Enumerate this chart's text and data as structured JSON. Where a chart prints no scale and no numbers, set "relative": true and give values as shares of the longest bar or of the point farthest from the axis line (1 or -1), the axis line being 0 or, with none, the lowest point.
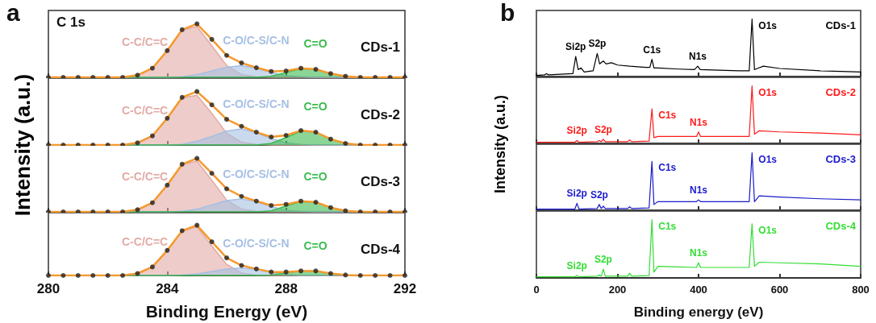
{
  "chart_data": [
    {
      "type": "area",
      "title": "a",
      "ylabel": "Intensity (a.u.)",
      "relative": true,
      "legend": false,
      "grid": false,
      "tick_labels": false,
      "xlim": [
        280,
        292
      ],
      "xticks": [
        280,
        284,
        288,
        292
      ],
      "annotations": [
        "C 1s",
        "CDs-1"
      ],
      "x": [
        280,
        280.5,
        281,
        281.5,
        282,
        282.5,
        283,
        283.5,
        284,
        284.5,
        285,
        285.5,
        286,
        286.5,
        287,
        287.5,
        288,
        288.5,
        289,
        289.5,
        290,
        290.5,
        291,
        291.5,
        292
      ],
      "series": [
        {
          "name": "C-C/C=C",
          "color": "#e3aaa5",
          "values": [
            0,
            0,
            0,
            0,
            0,
            0,
            0.04,
            0.17,
            0.5,
            0.88,
            0.95,
            0.59,
            0.22,
            0.05,
            0.01,
            0,
            0,
            0,
            0,
            0,
            0,
            0,
            0,
            0,
            0
          ]
        },
        {
          "name": "C-O/C-S/C-N",
          "color": "#a5bfe3",
          "values": [
            0,
            0,
            0,
            0,
            0,
            0,
            0,
            0,
            0,
            0.01,
            0.05,
            0.12,
            0.19,
            0.22,
            0.17,
            0.09,
            0.03,
            0.01,
            0,
            0,
            0,
            0,
            0,
            0,
            0
          ]
        },
        {
          "name": "C=O",
          "color": "#3dbb50",
          "values": [
            0,
            0,
            0,
            0,
            0,
            0,
            0,
            0,
            0,
            0,
            0,
            0,
            0,
            0,
            0,
            0.02,
            0.09,
            0.16,
            0.15,
            0.07,
            0.02,
            0,
            0,
            0,
            0
          ]
        },
        {
          "type": "line",
          "color": "#f5992e",
          "values": [
            0,
            0,
            0,
            0,
            0,
            0,
            0.04,
            0.17,
            0.5,
            0.89,
            1,
            0.71,
            0.41,
            0.27,
            0.18,
            0.11,
            0.12,
            0.17,
            0.15,
            0.07,
            0.02,
            0,
            0,
            0,
            0
          ]
        },
        {
          "type": "scatter",
          "marker": "circle",
          "color": "#222222",
          "values": [
            0,
            0,
            0,
            0,
            0,
            0,
            0.04,
            0.17,
            0.5,
            0.89,
            1,
            0.71,
            0.41,
            0.27,
            0.18,
            0.11,
            0.12,
            0.17,
            0.15,
            0.07,
            0.02,
            0,
            0,
            0,
            0
          ]
        }
      ]
    },
    {
      "type": "area",
      "relative": true,
      "legend": false,
      "grid": false,
      "tick_labels": false,
      "xlim": [
        280,
        292
      ],
      "xticks": [
        280,
        284,
        288,
        292
      ],
      "annotations": [
        "CDs-2"
      ],
      "x": [
        280,
        280.5,
        281,
        281.5,
        282,
        282.5,
        283,
        283.5,
        284,
        284.5,
        285,
        285.5,
        286,
        286.5,
        287,
        287.5,
        288,
        288.5,
        289,
        289.5,
        290,
        290.5,
        291,
        291.5,
        292
      ],
      "series": [
        {
          "name": "C-C/C=C",
          "color": "#e3aaa5",
          "values": [
            0,
            0,
            0,
            0,
            0,
            0,
            0.04,
            0.17,
            0.5,
            0.88,
            0.93,
            0.59,
            0.22,
            0.05,
            0.01,
            0,
            0,
            0,
            0,
            0,
            0,
            0,
            0,
            0,
            0
          ]
        },
        {
          "name": "C-O/C-S/C-N",
          "color": "#a5bfe3",
          "values": [
            0,
            0,
            0,
            0,
            0,
            0,
            0,
            0,
            0,
            0.01,
            0.07,
            0.16,
            0.26,
            0.3,
            0.23,
            0.12,
            0.04,
            0.01,
            0,
            0,
            0,
            0,
            0,
            0,
            0
          ]
        },
        {
          "name": "C=O",
          "color": "#3dbb50",
          "values": [
            0,
            0,
            0,
            0,
            0,
            0,
            0,
            0,
            0,
            0,
            0,
            0,
            0,
            0,
            0,
            0.03,
            0.14,
            0.26,
            0.24,
            0.11,
            0.03,
            0,
            0,
            0,
            0
          ]
        },
        {
          "type": "line",
          "color": "#f5992e",
          "values": [
            0,
            0,
            0,
            0,
            0,
            0,
            0.04,
            0.17,
            0.5,
            0.89,
            1,
            0.75,
            0.48,
            0.35,
            0.24,
            0.15,
            0.18,
            0.27,
            0.24,
            0.11,
            0.03,
            0,
            0,
            0,
            0
          ]
        },
        {
          "type": "scatter",
          "marker": "circle",
          "color": "#222222",
          "values": [
            0,
            0,
            0,
            0,
            0,
            0,
            0.04,
            0.17,
            0.5,
            0.89,
            1,
            0.75,
            0.48,
            0.35,
            0.24,
            0.15,
            0.18,
            0.27,
            0.24,
            0.11,
            0.03,
            0,
            0,
            0,
            0
          ]
        }
      ]
    },
    {
      "type": "area",
      "relative": true,
      "legend": false,
      "grid": false,
      "tick_labels": false,
      "xlim": [
        280,
        292
      ],
      "xticks": [
        280,
        284,
        288,
        292
      ],
      "annotations": [
        "CDs-3"
      ],
      "x": [
        280,
        280.5,
        281,
        281.5,
        282,
        282.5,
        283,
        283.5,
        284,
        284.5,
        285,
        285.5,
        286,
        286.5,
        287,
        287.5,
        288,
        288.5,
        289,
        289.5,
        290,
        290.5,
        291,
        291.5,
        292
      ],
      "series": [
        {
          "name": "C-C/C=C",
          "color": "#e3aaa5",
          "values": [
            0,
            0,
            0,
            0,
            0,
            0,
            0.04,
            0.17,
            0.5,
            0.88,
            0.95,
            0.59,
            0.22,
            0.05,
            0.01,
            0,
            0,
            0,
            0,
            0,
            0,
            0,
            0,
            0,
            0
          ]
        },
        {
          "name": "C-O/C-S/C-N",
          "color": "#a5bfe3",
          "values": [
            0,
            0,
            0,
            0,
            0,
            0,
            0,
            0,
            0,
            0.01,
            0.05,
            0.13,
            0.21,
            0.24,
            0.19,
            0.1,
            0.03,
            0.01,
            0,
            0,
            0,
            0,
            0,
            0,
            0
          ]
        },
        {
          "name": "C=O",
          "color": "#3dbb50",
          "values": [
            0,
            0,
            0,
            0,
            0,
            0,
            0,
            0,
            0,
            0,
            0,
            0,
            0,
            0,
            0,
            0.02,
            0.11,
            0.19,
            0.18,
            0.08,
            0.02,
            0,
            0,
            0,
            0
          ]
        },
        {
          "type": "line",
          "color": "#f5992e",
          "values": [
            0,
            0,
            0,
            0,
            0,
            0,
            0.04,
            0.17,
            0.5,
            0.89,
            1,
            0.72,
            0.43,
            0.29,
            0.2,
            0.12,
            0.14,
            0.2,
            0.18,
            0.08,
            0.02,
            0,
            0,
            0,
            0
          ]
        },
        {
          "type": "scatter",
          "marker": "circle",
          "color": "#222222",
          "values": [
            0,
            0,
            0,
            0,
            0,
            0,
            0.04,
            0.17,
            0.5,
            0.89,
            1,
            0.72,
            0.43,
            0.29,
            0.2,
            0.12,
            0.14,
            0.2,
            0.18,
            0.08,
            0.02,
            0,
            0,
            0,
            0
          ]
        }
      ]
    },
    {
      "type": "area",
      "xlabel": "Binding Energy (eV)",
      "relative": true,
      "legend": false,
      "grid": false,
      "tick_labels": "x",
      "xlim": [
        280,
        292
      ],
      "xticks": [
        280,
        284,
        288,
        292
      ],
      "annotations": [
        "CDs-4"
      ],
      "x": [
        280,
        280.5,
        281,
        281.5,
        282,
        282.5,
        283,
        283.5,
        284,
        284.5,
        285,
        285.5,
        286,
        286.5,
        287,
        287.5,
        288,
        288.5,
        289,
        289.5,
        290,
        290.5,
        291,
        291.5,
        292
      ],
      "series": [
        {
          "name": "C-C/C=C",
          "color": "#e3aaa5",
          "values": [
            0,
            0,
            0,
            0,
            0,
            0,
            0.04,
            0.17,
            0.5,
            0.88,
            0.97,
            0.59,
            0.22,
            0.05,
            0.01,
            0,
            0,
            0,
            0,
            0,
            0,
            0,
            0,
            0,
            0
          ]
        },
        {
          "name": "C-O/C-S/C-N",
          "color": "#a5bfe3",
          "values": [
            0,
            0,
            0,
            0,
            0,
            0,
            0,
            0,
            0,
            0.01,
            0.03,
            0.08,
            0.13,
            0.15,
            0.12,
            0.06,
            0.02,
            0,
            0,
            0,
            0,
            0,
            0,
            0,
            0
          ]
        },
        {
          "name": "C=O",
          "color": "#3dbb50",
          "values": [
            0,
            0,
            0,
            0,
            0,
            0,
            0,
            0,
            0,
            0,
            0,
            0,
            0,
            0,
            0,
            0.01,
            0.05,
            0.09,
            0.09,
            0.04,
            0.01,
            0,
            0,
            0,
            0
          ]
        },
        {
          "type": "line",
          "color": "#f5992e",
          "values": [
            0,
            0,
            0,
            0,
            0,
            0,
            0.04,
            0.17,
            0.5,
            0.89,
            1,
            0.67,
            0.35,
            0.2,
            0.13,
            0.07,
            0.07,
            0.09,
            0.09,
            0.04,
            0.01,
            0,
            0,
            0,
            0
          ]
        },
        {
          "type": "scatter",
          "marker": "circle",
          "color": "#222222",
          "values": [
            0,
            0,
            0,
            0,
            0,
            0,
            0.04,
            0.17,
            0.5,
            0.89,
            1,
            0.67,
            0.35,
            0.2,
            0.13,
            0.07,
            0.07,
            0.09,
            0.09,
            0.04,
            0.01,
            0,
            0,
            0,
            0
          ]
        }
      ]
    },
    {
      "type": "line",
      "title": "b",
      "ylabel": "Intensity (a.u.)",
      "relative": true,
      "legend": false,
      "grid": false,
      "tick_labels": false,
      "xlim": [
        0,
        800
      ],
      "xticks": [
        0,
        200,
        400,
        600,
        800
      ],
      "annotations": [
        {
          "text": "Si2p",
          "x": 97,
          "y": 0.35
        },
        {
          "text": "S2p",
          "x": 150,
          "y": 0.4
        },
        {
          "text": "C1s",
          "x": 285,
          "y": 0.3
        },
        {
          "text": "N1s",
          "x": 398,
          "y": 0.18
        },
        {
          "text": "O1s",
          "x": 532,
          "y": 1
        },
        "CDs-1"
      ],
      "x": [
        0,
        20,
        25,
        30,
        90,
        97,
        103,
        110,
        118,
        140,
        150,
        156,
        165,
        172,
        185,
        200,
        230,
        270,
        280,
        285,
        290,
        300,
        350,
        390,
        398,
        404,
        450,
        500,
        525,
        532,
        538,
        545,
        560,
        600,
        700,
        800
      ],
      "series": [
        {
          "color": "#000000",
          "values": [
            0.02,
            0.03,
            0.05,
            0.03,
            0.05,
            0.35,
            0.12,
            0.15,
            0.08,
            0.1,
            0.4,
            0.22,
            0.27,
            0.22,
            0.24,
            0.2,
            0.18,
            0.16,
            0.16,
            0.3,
            0.15,
            0.15,
            0.13,
            0.12,
            0.18,
            0.12,
            0.11,
            0.1,
            0.1,
            1,
            0.12,
            0.14,
            0.18,
            0.14,
            0.1,
            0.08
          ]
        }
      ]
    },
    {
      "type": "line",
      "relative": true,
      "legend": false,
      "grid": false,
      "tick_labels": false,
      "xlim": [
        0,
        800
      ],
      "xticks": [
        0,
        200,
        400,
        600,
        800
      ],
      "annotations": [
        {
          "text": "Si2p",
          "x": 100,
          "y": 0.05
        },
        {
          "text": "S2p",
          "x": 165,
          "y": 0.07
        },
        {
          "text": "C1s",
          "x": 285,
          "y": 0.6
        },
        {
          "text": "N1s",
          "x": 400,
          "y": 0.2
        },
        {
          "text": "O1s",
          "x": 532,
          "y": 1
        },
        "CDs-2"
      ],
      "x": [
        0,
        95,
        100,
        105,
        150,
        155,
        160,
        165,
        170,
        225,
        230,
        235,
        278,
        285,
        290,
        300,
        350,
        395,
        400,
        405,
        500,
        525,
        532,
        538,
        550,
        600,
        700,
        800
      ],
      "series": [
        {
          "color": "#ff1a1a",
          "values": [
            0.02,
            0.02,
            0.05,
            0.02,
            0.03,
            0.05,
            0.03,
            0.07,
            0.03,
            0.03,
            0.06,
            0.03,
            0.04,
            0.6,
            0.1,
            0.12,
            0.12,
            0.12,
            0.2,
            0.12,
            0.12,
            0.12,
            1,
            0.16,
            0.22,
            0.2,
            0.18,
            0.15
          ]
        }
      ]
    },
    {
      "type": "line",
      "relative": true,
      "legend": false,
      "grid": false,
      "tick_labels": false,
      "xlim": [
        0,
        800
      ],
      "xticks": [
        0,
        200,
        400,
        600,
        800
      ],
      "annotations": [
        {
          "text": "Si2p",
          "x": 100,
          "y": 0.12
        },
        {
          "text": "S2p",
          "x": 155,
          "y": 0.1
        },
        {
          "text": "C1s",
          "x": 285,
          "y": 0.85
        },
        {
          "text": "N1s",
          "x": 400,
          "y": 0.18
        },
        {
          "text": "O1s",
          "x": 532,
          "y": 1
        },
        "CDs-3"
      ],
      "x": [
        0,
        95,
        100,
        105,
        150,
        155,
        160,
        165,
        170,
        225,
        230,
        235,
        278,
        285,
        290,
        300,
        350,
        395,
        400,
        405,
        500,
        525,
        532,
        538,
        550,
        600,
        700,
        800
      ],
      "series": [
        {
          "color": "#1a1acc",
          "values": [
            0.02,
            0.02,
            0.12,
            0.02,
            0.03,
            0.1,
            0.03,
            0.07,
            0.03,
            0.03,
            0.06,
            0.03,
            0.04,
            0.85,
            0.1,
            0.15,
            0.15,
            0.15,
            0.18,
            0.15,
            0.15,
            0.15,
            1,
            0.15,
            0.25,
            0.23,
            0.2,
            0.18
          ]
        }
      ]
    },
    {
      "type": "line",
      "xlabel": "Binding energy (eV)",
      "relative": true,
      "legend": false,
      "grid": false,
      "tick_labels": "x",
      "xlim": [
        0,
        800
      ],
      "xticks": [
        0,
        200,
        400,
        600,
        800
      ],
      "annotations": [
        {
          "text": "Si2p",
          "x": 100,
          "y": 0.04
        },
        {
          "text": "S2p",
          "x": 165,
          "y": 0.15
        },
        {
          "text": "C1s",
          "x": 285,
          "y": 1
        },
        {
          "text": "N1s",
          "x": 400,
          "y": 0.26
        },
        {
          "text": "O1s",
          "x": 532,
          "y": 0.93
        },
        "CDs-4"
      ],
      "x": [
        0,
        95,
        100,
        105,
        150,
        155,
        160,
        165,
        170,
        225,
        230,
        235,
        278,
        285,
        290,
        300,
        350,
        395,
        400,
        405,
        500,
        525,
        532,
        538,
        550,
        600,
        700,
        800
      ],
      "series": [
        {
          "color": "#33dd33",
          "values": [
            0.02,
            0.02,
            0.04,
            0.02,
            0.03,
            0.05,
            0.03,
            0.15,
            0.03,
            0.03,
            0.08,
            0.03,
            0.04,
            1,
            0.1,
            0.2,
            0.19,
            0.18,
            0.26,
            0.18,
            0.18,
            0.18,
            0.93,
            0.2,
            0.27,
            0.26,
            0.24,
            0.2
          ]
        }
      ]
    }
  ]
}
